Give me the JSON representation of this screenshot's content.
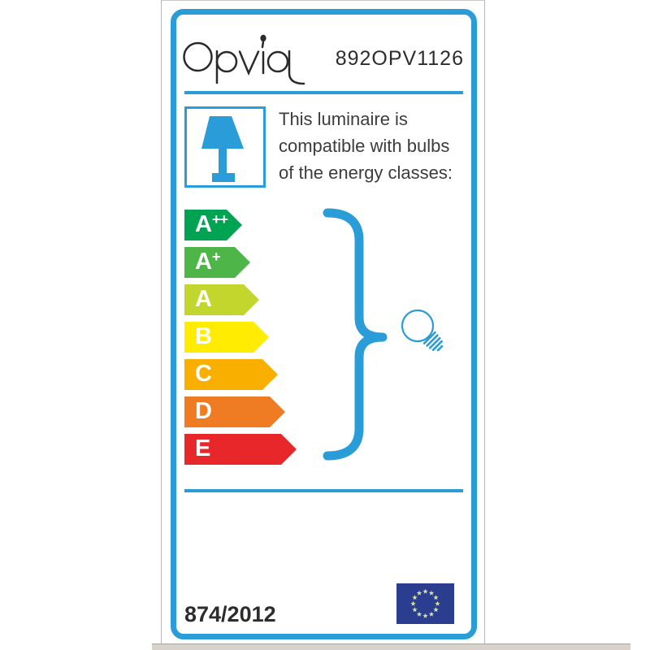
{
  "brand": {
    "name": "Opviq"
  },
  "header": {
    "product_code": "892OPV1126"
  },
  "compatibility_note": {
    "lines": [
      "This luminaire is",
      "compatible with bulbs",
      "of the energy classes:"
    ]
  },
  "energy_classes": [
    {
      "label": "A",
      "sup": "++",
      "color": "#00a351",
      "width": 71
    },
    {
      "label": "A",
      "sup": "+",
      "color": "#4eb648",
      "width": 81
    },
    {
      "label": "A",
      "sup": "",
      "color": "#c2d62e",
      "width": 92
    },
    {
      "label": "B",
      "sup": "",
      "color": "#ffec00",
      "width": 104
    },
    {
      "label": "C",
      "sup": "",
      "color": "#f9af00",
      "width": 115
    },
    {
      "label": "D",
      "sup": "",
      "color": "#ef7c23",
      "width": 124
    },
    {
      "label": "E",
      "sup": "",
      "color": "#e8272b",
      "width": 138
    }
  ],
  "footer": {
    "regulation_number": "874/2012"
  },
  "icons": {
    "lamp": "table-lamp-icon",
    "bulb": "light-bulb-icon",
    "brace": "curly-brace-glyph",
    "flag": "eu-flag"
  },
  "eu_flag": {
    "star_count": 12
  },
  "colors": {
    "accent_blue": "#2a9cd7",
    "text_dark": "#3c3c3b",
    "eu_flag_blue": "#2b3d8f",
    "eu_star_yellow": "#d9e39b"
  }
}
